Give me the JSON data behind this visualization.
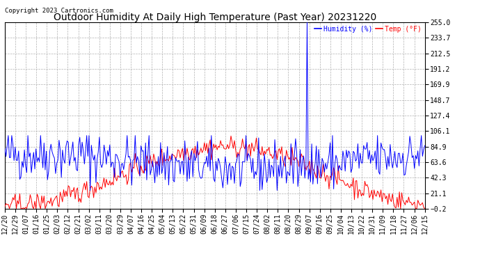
{
  "title": "Outdoor Humidity At Daily High Temperature (Past Year) 20231220",
  "copyright": "Copyright 2023 Cartronics.com",
  "legend_humidity": "Humidity (%)",
  "legend_temp": "Temp (°F)",
  "y_min": -0.2,
  "y_max": 255.0,
  "y_ticks": [
    255.0,
    233.7,
    212.5,
    191.2,
    169.9,
    148.7,
    127.4,
    106.1,
    84.9,
    63.6,
    42.3,
    21.1,
    -0.2
  ],
  "color_humidity": "#0000ff",
  "color_temp": "#ff0000",
  "color_black": "#000000",
  "background_color": "#ffffff",
  "grid_color": "#b0b0b0",
  "title_fontsize": 10,
  "tick_fontsize": 7,
  "copyright_fontsize": 6.5,
  "legend_fontsize": 7,
  "x_labels": [
    "12/20",
    "12/29",
    "01/07",
    "01/16",
    "01/25",
    "02/03",
    "02/12",
    "02/21",
    "03/02",
    "03/11",
    "03/20",
    "03/29",
    "04/07",
    "04/16",
    "04/25",
    "05/04",
    "05/13",
    "05/22",
    "05/31",
    "06/09",
    "06/18",
    "06/27",
    "07/06",
    "07/15",
    "07/24",
    "08/02",
    "08/11",
    "08/20",
    "08/29",
    "09/07",
    "09/16",
    "09/25",
    "10/04",
    "10/13",
    "10/22",
    "10/31",
    "11/09",
    "11/18",
    "11/27",
    "12/06",
    "12/15"
  ],
  "spike_day": 262,
  "n_points": 365,
  "humidity_seed": 42,
  "temp_seed": 42
}
